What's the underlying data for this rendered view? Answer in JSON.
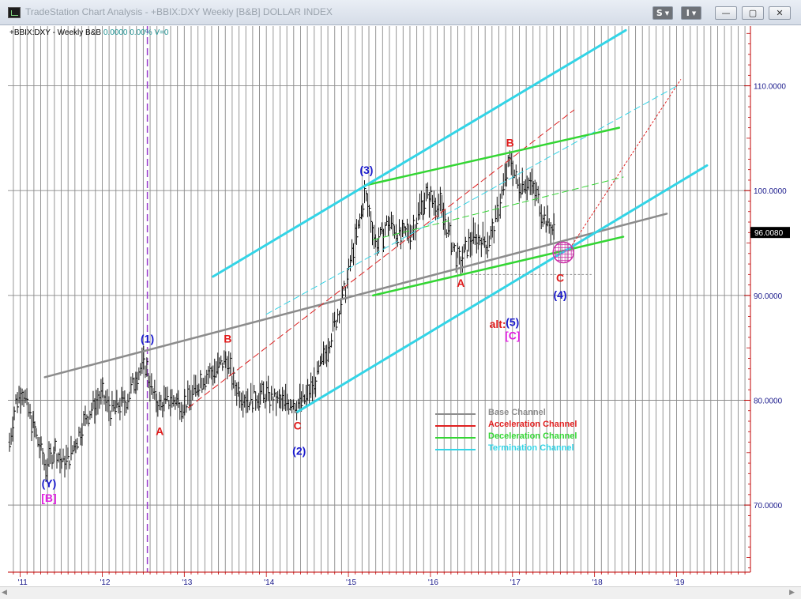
{
  "window": {
    "title": "TradeStation Chart Analysis - +BBIX:DXY Weekly [B&B] DOLLAR INDEX",
    "buttons": [
      "S",
      "I"
    ]
  },
  "header": {
    "symbol": "+BBIX:DXY - Weekly  B&B",
    "change": "0.0000",
    "change_pct": "0.00%",
    "volume": "V=0"
  },
  "price_label": "96.0080",
  "colors": {
    "base": "#8c8c8c",
    "acceleration": "#e02020",
    "deceleration": "#33d633",
    "termination": "#33d4e6",
    "wave_blue": "#1a1acc",
    "wave_red": "#e01a1a",
    "wave_magenta": "#e020e0"
  },
  "chart_data": {
    "type": "ohlc",
    "title": "",
    "xlabel": "",
    "ylabel": "",
    "ylim": [
      63.6,
      115.7
    ],
    "xlim": [
      2010.85,
      2019.9
    ],
    "x_ticks": [
      {
        "x": 2011,
        "label": "'11"
      },
      {
        "x": 2012,
        "label": "'12"
      },
      {
        "x": 2013,
        "label": "'13"
      },
      {
        "x": 2014,
        "label": "'14"
      },
      {
        "x": 2015,
        "label": "'15"
      },
      {
        "x": 2016,
        "label": "'16"
      },
      {
        "x": 2017,
        "label": "'17"
      },
      {
        "x": 2018,
        "label": "'18"
      },
      {
        "x": 2019,
        "label": "'19"
      }
    ],
    "y_ticks": [
      {
        "y": 70,
        "label": "70.0000"
      },
      {
        "y": 80,
        "label": "80.0000"
      },
      {
        "y": 90,
        "label": "90.0000"
      },
      {
        "y": 100,
        "label": "100.0000"
      },
      {
        "y": 110,
        "label": "110.0000"
      }
    ],
    "last_price": 96.008,
    "price_path": [
      [
        2010.87,
        76.0
      ],
      [
        2010.95,
        80.0
      ],
      [
        2011.03,
        81.0
      ],
      [
        2011.12,
        78.5
      ],
      [
        2011.22,
        76.0
      ],
      [
        2011.32,
        73.5
      ],
      [
        2011.42,
        75.5
      ],
      [
        2011.5,
        74.0
      ],
      [
        2011.6,
        74.5
      ],
      [
        2011.7,
        76.5
      ],
      [
        2011.78,
        78.0
      ],
      [
        2011.9,
        79.5
      ],
      [
        2012.0,
        80.5
      ],
      [
        2012.1,
        79.0
      ],
      [
        2012.2,
        79.5
      ],
      [
        2012.3,
        80.0
      ],
      [
        2012.42,
        82.5
      ],
      [
        2012.52,
        83.5
      ],
      [
        2012.62,
        80.5
      ],
      [
        2012.7,
        79.5
      ],
      [
        2012.8,
        80.0
      ],
      [
        2012.9,
        80.0
      ],
      [
        2013.0,
        79.5
      ],
      [
        2013.1,
        80.5
      ],
      [
        2013.2,
        82.0
      ],
      [
        2013.3,
        82.5
      ],
      [
        2013.4,
        83.0
      ],
      [
        2013.52,
        84.0
      ],
      [
        2013.6,
        81.5
      ],
      [
        2013.7,
        80.5
      ],
      [
        2013.8,
        80.0
      ],
      [
        2013.9,
        80.5
      ],
      [
        2014.0,
        80.5
      ],
      [
        2014.1,
        80.0
      ],
      [
        2014.2,
        79.7
      ],
      [
        2014.3,
        80.0
      ],
      [
        2014.38,
        79.6
      ],
      [
        2014.48,
        80.2
      ],
      [
        2014.58,
        81.5
      ],
      [
        2014.68,
        83.5
      ],
      [
        2014.78,
        86.0
      ],
      [
        2014.88,
        88.5
      ],
      [
        2014.96,
        90.5
      ],
      [
        2015.06,
        94.5
      ],
      [
        2015.14,
        97.0
      ],
      [
        2015.2,
        99.7
      ],
      [
        2015.27,
        97.5
      ],
      [
        2015.33,
        95.0
      ],
      [
        2015.4,
        95.5
      ],
      [
        2015.48,
        97.0
      ],
      [
        2015.56,
        96.5
      ],
      [
        2015.64,
        95.5
      ],
      [
        2015.72,
        96.0
      ],
      [
        2015.8,
        96.5
      ],
      [
        2015.88,
        98.5
      ],
      [
        2015.95,
        99.5
      ],
      [
        2016.03,
        99.0
      ],
      [
        2016.12,
        98.5
      ],
      [
        2016.2,
        96.5
      ],
      [
        2016.28,
        94.5
      ],
      [
        2016.36,
        93.0
      ],
      [
        2016.44,
        94.5
      ],
      [
        2016.52,
        95.5
      ],
      [
        2016.6,
        95.5
      ],
      [
        2016.68,
        95.0
      ],
      [
        2016.76,
        96.0
      ],
      [
        2016.84,
        98.5
      ],
      [
        2016.92,
        101.5
      ],
      [
        2016.98,
        103.0
      ],
      [
        2017.06,
        100.5
      ],
      [
        2017.14,
        101.0
      ],
      [
        2017.22,
        100.5
      ],
      [
        2017.3,
        99.5
      ],
      [
        2017.38,
        97.5
      ],
      [
        2017.46,
        96.5
      ],
      [
        2017.52,
        96.0
      ]
    ],
    "lines": [
      {
        "series": "Base Channel",
        "style": "solid",
        "width": 2.5,
        "x1": 2011.3,
        "y1": 82.2,
        "x2": 2018.88,
        "y2": 97.8
      },
      {
        "series": "Base Channel",
        "style": "dotted",
        "width": 1,
        "x1": 2016.5,
        "y1": 92.0,
        "x2": 2017.96,
        "y2": 92.0
      },
      {
        "series": "Acceleration Channel",
        "style": "dashed",
        "width": 1,
        "x1": 2013.05,
        "y1": 79.3,
        "x2": 2017.75,
        "y2": 107.7
      },
      {
        "series": "Acceleration Channel",
        "style": "dotted",
        "width": 1,
        "x1": 2017.7,
        "y1": 94.5,
        "x2": 2019.05,
        "y2": 110.6
      },
      {
        "series": "Deceleration Channel",
        "style": "solid",
        "width": 2.5,
        "x1": 2015.2,
        "y1": 100.5,
        "x2": 2018.3,
        "y2": 106.0
      },
      {
        "series": "Deceleration Channel",
        "style": "solid",
        "width": 2.5,
        "x1": 2015.3,
        "y1": 90.0,
        "x2": 2018.35,
        "y2": 95.6
      },
      {
        "series": "Deceleration Channel",
        "style": "dashed",
        "width": 1,
        "x1": 2015.3,
        "y1": 95.3,
        "x2": 2018.35,
        "y2": 101.3
      },
      {
        "series": "Termination Channel",
        "style": "solid",
        "width": 3,
        "x1": 2013.35,
        "y1": 91.8,
        "x2": 2018.38,
        "y2": 115.3
      },
      {
        "series": "Termination Channel",
        "style": "solid",
        "width": 3,
        "x1": 2014.38,
        "y1": 78.9,
        "x2": 2019.37,
        "y2": 102.4
      },
      {
        "series": "Termination Channel",
        "style": "dashed",
        "width": 1,
        "x1": 2014.0,
        "y1": 88.2,
        "x2": 2019.03,
        "y2": 110.1
      }
    ],
    "vertical_markers": [
      {
        "x": 2012.55,
        "color": "#9b3fcf",
        "style": "dashed"
      }
    ],
    "target_zone": {
      "x": 2017.62,
      "y": 94.1,
      "color": "#cc33aa"
    },
    "wave_labels": [
      {
        "text": "(Y)",
        "x": 2011.35,
        "y": 71.7,
        "color": "#1a1acc"
      },
      {
        "text": "[B]",
        "x": 2011.35,
        "y": 70.3,
        "color": "#e020e0"
      },
      {
        "text": "(1)",
        "x": 2012.55,
        "y": 85.5,
        "color": "#1a1acc"
      },
      {
        "text": "A",
        "x": 2012.7,
        "y": 76.7,
        "color": "#e01a1a"
      },
      {
        "text": "B",
        "x": 2013.53,
        "y": 85.5,
        "color": "#e01a1a"
      },
      {
        "text": "C",
        "x": 2014.38,
        "y": 77.2,
        "color": "#e01a1a"
      },
      {
        "text": "(2)",
        "x": 2014.4,
        "y": 74.8,
        "color": "#1a1acc"
      },
      {
        "text": "(3)",
        "x": 2015.22,
        "y": 101.6,
        "color": "#1a1acc"
      },
      {
        "text": "A",
        "x": 2016.37,
        "y": 90.8,
        "color": "#e01a1a"
      },
      {
        "text": "B",
        "x": 2016.97,
        "y": 104.2,
        "color": "#e01a1a"
      },
      {
        "text": "C",
        "x": 2017.58,
        "y": 91.3,
        "color": "#e01a1a"
      },
      {
        "text": "(4)",
        "x": 2017.58,
        "y": 89.7,
        "color": "#1a1acc"
      },
      {
        "text": "alt:",
        "x": 2016.82,
        "y": 86.9,
        "color": "#e01a1a"
      },
      {
        "text": "(5)",
        "x": 2017.0,
        "y": 87.1,
        "color": "#1a1acc"
      },
      {
        "text": "[C]",
        "x": 2017.0,
        "y": 85.8,
        "color": "#e020e0"
      }
    ],
    "legend": {
      "placement": "center-bottom",
      "entries": [
        {
          "name": "Base Channel",
          "color": "#8c8c8c"
        },
        {
          "name": "Acceleration Channel",
          "color": "#e02020"
        },
        {
          "name": "Deceleration Channel",
          "color": "#33d633"
        },
        {
          "name": "Termination Channel",
          "color": "#33d4e6"
        }
      ]
    },
    "grid": true
  }
}
